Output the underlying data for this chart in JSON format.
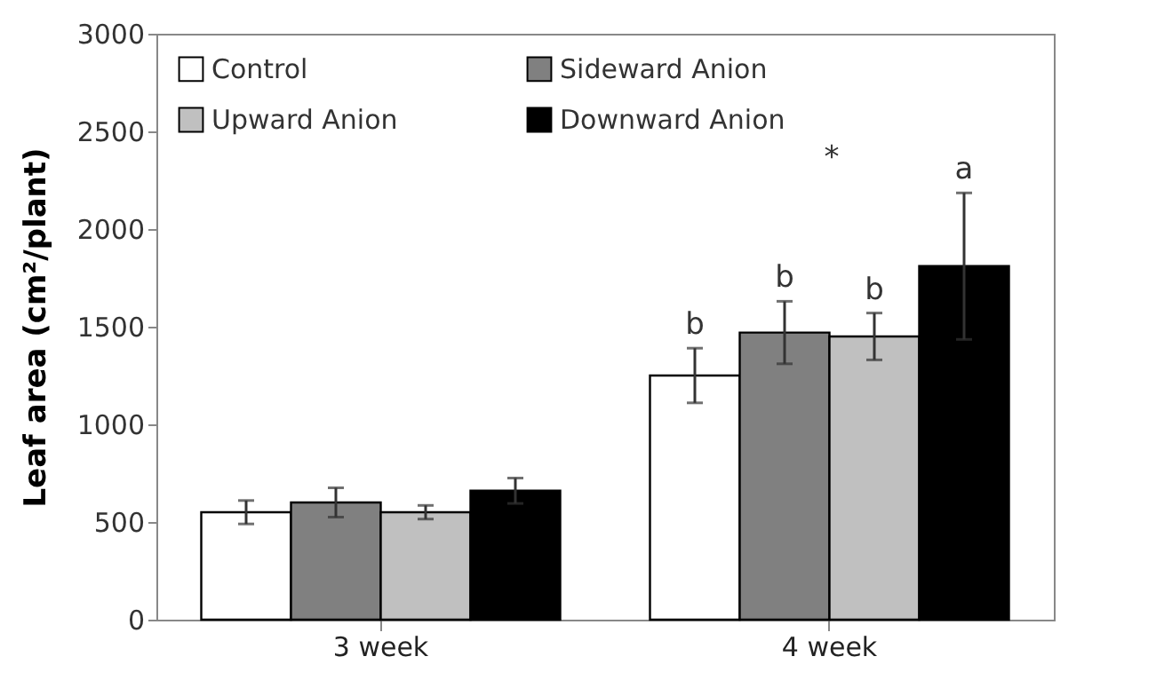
{
  "chart_data": {
    "type": "bar",
    "ylabel": "Leaf area (cm²/plant)",
    "categories": [
      "3 week",
      "4 week"
    ],
    "series": [
      {
        "name": "Control",
        "color": "#ffffff",
        "values": [
          550,
          1250
        ],
        "errors": [
          60,
          140
        ],
        "value_labels": [
          null,
          "b"
        ]
      },
      {
        "name": "Sideward Anion",
        "color": "#808080",
        "values": [
          600,
          1470
        ],
        "errors": [
          75,
          160
        ],
        "value_labels": [
          null,
          "b"
        ]
      },
      {
        "name": "Upward Anion",
        "color": "#c0c0c0",
        "values": [
          550,
          1450
        ],
        "errors": [
          35,
          120
        ],
        "value_labels": [
          null,
          "b"
        ]
      },
      {
        "name": "Downward Anion",
        "color": "#000000",
        "values": [
          660,
          1810
        ],
        "errors": [
          65,
          375
        ],
        "value_labels": [
          null,
          "a"
        ]
      }
    ],
    "annotations": [
      "*"
    ],
    "ylim": [
      0,
      3000
    ],
    "yticks": [
      0,
      500,
      1000,
      1500,
      2000,
      2500,
      3000
    ],
    "grid": false,
    "legend": "top"
  }
}
